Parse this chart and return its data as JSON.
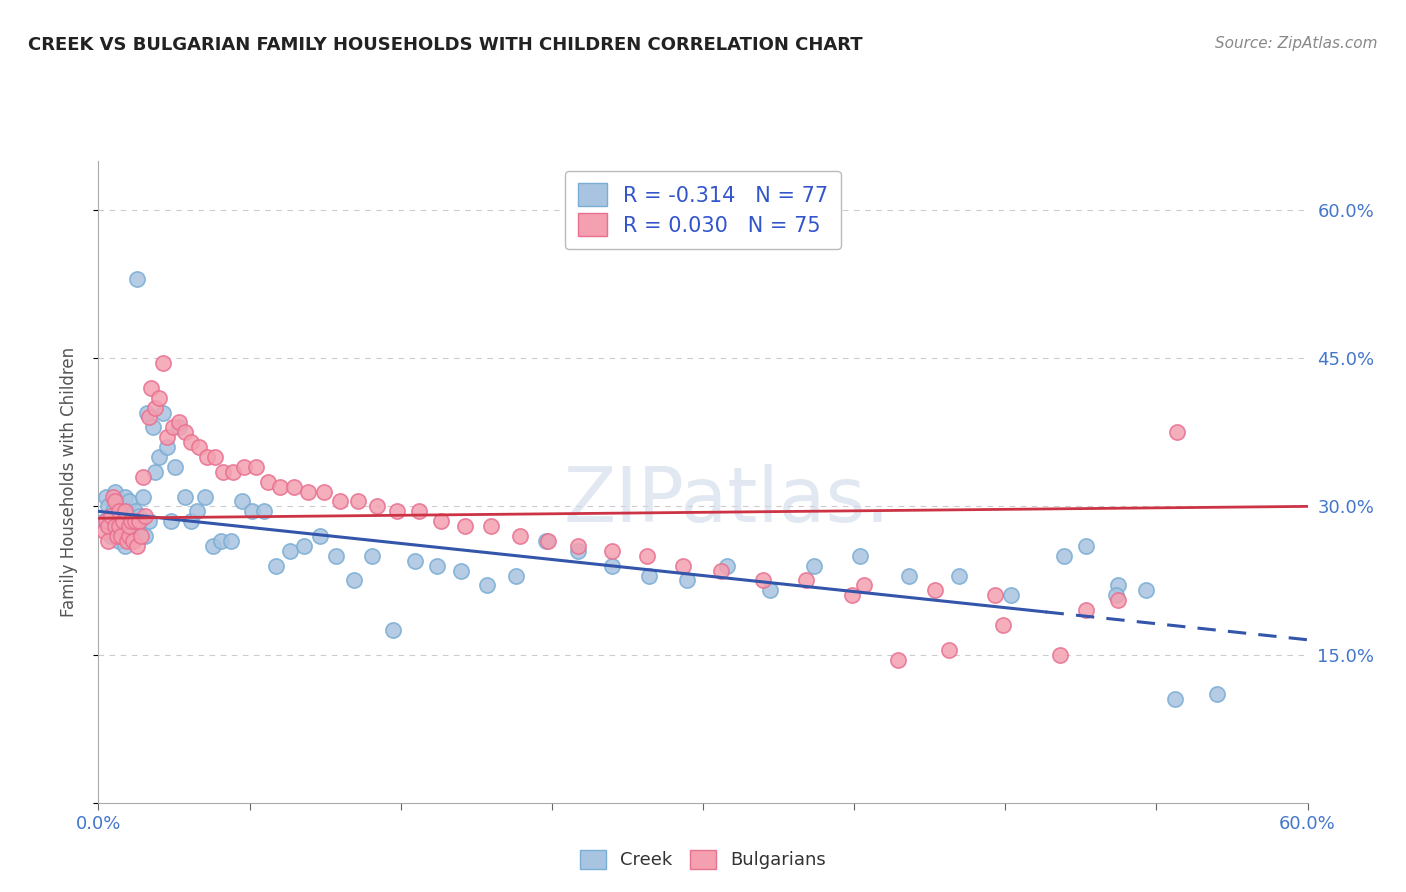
{
  "title": "CREEK VS BULGARIAN FAMILY HOUSEHOLDS WITH CHILDREN CORRELATION CHART",
  "source": "Source: ZipAtlas.com",
  "ylabel": "Family Households with Children",
  "xmin": 0.0,
  "xmax": 0.6,
  "ymin": 0.0,
  "ymax": 0.65,
  "yticks": [
    0.0,
    0.15,
    0.3,
    0.45,
    0.6
  ],
  "xticks": [
    0.0,
    0.075,
    0.15,
    0.225,
    0.3,
    0.375,
    0.45,
    0.525,
    0.6
  ],
  "xtick_labels": [
    "0.0%",
    "",
    "",
    "",
    "",
    "",
    "",
    "",
    "60.0%"
  ],
  "ytick_labels_right": [
    "",
    "15.0%",
    "30.0%",
    "45.0%",
    "60.0%"
  ],
  "creek_R": -0.314,
  "creek_N": 77,
  "bulg_R": 0.03,
  "bulg_N": 75,
  "creek_color": "#a8c4e0",
  "creek_edge_color": "#7aadd4",
  "bulg_color": "#f4a0b0",
  "bulg_edge_color": "#e87090",
  "creek_line_color": "#3355aa",
  "bulg_line_color": "#cc3344",
  "creek_line_solid_end": 0.47,
  "creek_line_x0": 0.0,
  "creek_line_y0": 0.295,
  "creek_line_x1": 0.6,
  "creek_line_y1": 0.165,
  "bulg_line_x0": 0.0,
  "bulg_line_y0": 0.288,
  "bulg_line_x1": 0.6,
  "bulg_line_y1": 0.3,
  "legend_text_color": "#3355cc",
  "grid_color": "#cccccc",
  "background_color": "#ffffff",
  "creek_x": [
    0.003,
    0.004,
    0.005,
    0.006,
    0.007,
    0.008,
    0.008,
    0.009,
    0.01,
    0.01,
    0.011,
    0.012,
    0.013,
    0.013,
    0.014,
    0.015,
    0.015,
    0.016,
    0.017,
    0.018,
    0.019,
    0.02,
    0.021,
    0.022,
    0.023,
    0.024,
    0.025,
    0.027,
    0.028,
    0.03,
    0.032,
    0.034,
    0.036,
    0.038,
    0.04,
    0.043,
    0.046,
    0.049,
    0.053,
    0.057,
    0.061,
    0.066,
    0.071,
    0.076,
    0.082,
    0.088,
    0.095,
    0.102,
    0.11,
    0.118,
    0.127,
    0.136,
    0.146,
    0.157,
    0.168,
    0.18,
    0.193,
    0.207,
    0.222,
    0.238,
    0.255,
    0.273,
    0.292,
    0.312,
    0.333,
    0.355,
    0.378,
    0.402,
    0.427,
    0.453,
    0.479,
    0.506,
    0.534,
    0.555,
    0.52,
    0.505,
    0.49
  ],
  "creek_y": [
    0.285,
    0.31,
    0.3,
    0.27,
    0.295,
    0.315,
    0.28,
    0.29,
    0.3,
    0.265,
    0.28,
    0.295,
    0.31,
    0.26,
    0.285,
    0.29,
    0.305,
    0.28,
    0.27,
    0.295,
    0.53,
    0.29,
    0.285,
    0.31,
    0.27,
    0.395,
    0.285,
    0.38,
    0.335,
    0.35,
    0.395,
    0.36,
    0.285,
    0.34,
    0.38,
    0.31,
    0.285,
    0.295,
    0.31,
    0.26,
    0.265,
    0.265,
    0.305,
    0.295,
    0.295,
    0.24,
    0.255,
    0.26,
    0.27,
    0.25,
    0.225,
    0.25,
    0.175,
    0.245,
    0.24,
    0.235,
    0.22,
    0.23,
    0.265,
    0.255,
    0.24,
    0.23,
    0.225,
    0.24,
    0.215,
    0.24,
    0.25,
    0.23,
    0.23,
    0.21,
    0.25,
    0.22,
    0.105,
    0.11,
    0.215,
    0.21,
    0.26
  ],
  "bulg_x": [
    0.003,
    0.004,
    0.005,
    0.005,
    0.006,
    0.007,
    0.008,
    0.008,
    0.009,
    0.01,
    0.01,
    0.011,
    0.012,
    0.013,
    0.014,
    0.015,
    0.015,
    0.016,
    0.017,
    0.018,
    0.019,
    0.02,
    0.021,
    0.022,
    0.023,
    0.025,
    0.026,
    0.028,
    0.03,
    0.032,
    0.034,
    0.037,
    0.04,
    0.043,
    0.046,
    0.05,
    0.054,
    0.058,
    0.062,
    0.067,
    0.072,
    0.078,
    0.084,
    0.09,
    0.097,
    0.104,
    0.112,
    0.12,
    0.129,
    0.138,
    0.148,
    0.159,
    0.17,
    0.182,
    0.195,
    0.209,
    0.223,
    0.238,
    0.255,
    0.272,
    0.29,
    0.309,
    0.33,
    0.351,
    0.374,
    0.397,
    0.422,
    0.449,
    0.477,
    0.506,
    0.535,
    0.49,
    0.445,
    0.415,
    0.38
  ],
  "bulg_y": [
    0.275,
    0.285,
    0.28,
    0.265,
    0.29,
    0.31,
    0.28,
    0.305,
    0.27,
    0.28,
    0.295,
    0.27,
    0.285,
    0.295,
    0.265,
    0.27,
    0.28,
    0.285,
    0.265,
    0.285,
    0.26,
    0.285,
    0.27,
    0.33,
    0.29,
    0.39,
    0.42,
    0.4,
    0.41,
    0.445,
    0.37,
    0.38,
    0.385,
    0.375,
    0.365,
    0.36,
    0.35,
    0.35,
    0.335,
    0.335,
    0.34,
    0.34,
    0.325,
    0.32,
    0.32,
    0.315,
    0.315,
    0.305,
    0.305,
    0.3,
    0.295,
    0.295,
    0.285,
    0.28,
    0.28,
    0.27,
    0.265,
    0.26,
    0.255,
    0.25,
    0.24,
    0.235,
    0.225,
    0.225,
    0.21,
    0.145,
    0.155,
    0.18,
    0.15,
    0.205,
    0.375,
    0.195,
    0.21,
    0.215,
    0.22
  ]
}
